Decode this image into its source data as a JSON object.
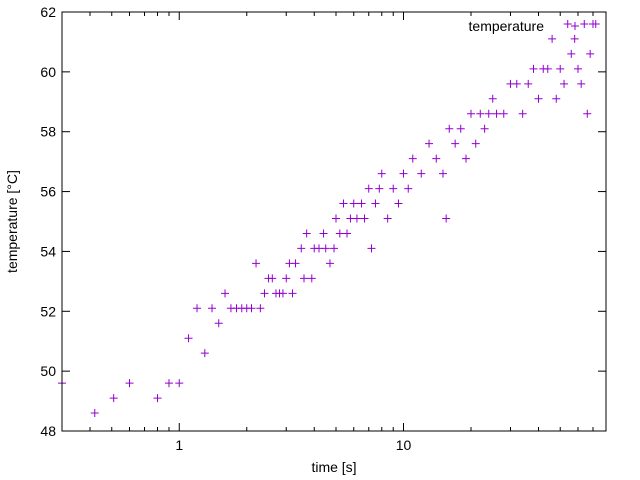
{
  "chart_data": {
    "type": "scatter",
    "xscale": "log",
    "xlim": [
      0.3,
      80
    ],
    "ylim": [
      48,
      62
    ],
    "xlabel": "time [s]",
    "ylabel": "temperature [°C]",
    "xticks": [
      1,
      10
    ],
    "xtick_labels": [
      "1",
      "10"
    ],
    "yticks": [
      48,
      50,
      52,
      54,
      56,
      58,
      60,
      62
    ],
    "ytick_labels": [
      "48",
      "50",
      "52",
      "54",
      "56",
      "58",
      "60",
      "62"
    ],
    "grid": false,
    "legend": {
      "position": "top-right",
      "entries": [
        "temperature"
      ]
    },
    "marker": "+",
    "color": "#9400d3",
    "series": [
      {
        "name": "temperature",
        "points": [
          [
            0.3,
            49.6
          ],
          [
            0.42,
            48.6
          ],
          [
            0.51,
            49.1
          ],
          [
            0.6,
            49.6
          ],
          [
            0.8,
            49.1
          ],
          [
            0.9,
            49.6
          ],
          [
            1.0,
            49.6
          ],
          [
            1.1,
            51.1
          ],
          [
            1.2,
            52.1
          ],
          [
            1.3,
            50.6
          ],
          [
            1.4,
            52.1
          ],
          [
            1.5,
            51.6
          ],
          [
            1.6,
            52.6
          ],
          [
            1.7,
            52.1
          ],
          [
            1.8,
            52.1
          ],
          [
            1.9,
            52.1
          ],
          [
            2.0,
            52.1
          ],
          [
            2.1,
            52.1
          ],
          [
            2.2,
            53.6
          ],
          [
            2.3,
            52.1
          ],
          [
            2.4,
            52.6
          ],
          [
            2.5,
            53.1
          ],
          [
            2.6,
            53.1
          ],
          [
            2.7,
            52.6
          ],
          [
            2.8,
            52.6
          ],
          [
            2.9,
            52.6
          ],
          [
            3.0,
            53.1
          ],
          [
            3.1,
            53.6
          ],
          [
            3.2,
            52.6
          ],
          [
            3.3,
            53.6
          ],
          [
            3.5,
            54.1
          ],
          [
            3.6,
            53.1
          ],
          [
            3.7,
            54.6
          ],
          [
            3.9,
            53.1
          ],
          [
            4.0,
            54.1
          ],
          [
            4.2,
            54.1
          ],
          [
            4.4,
            54.6
          ],
          [
            4.5,
            54.1
          ],
          [
            4.7,
            53.6
          ],
          [
            4.9,
            54.1
          ],
          [
            5.0,
            55.1
          ],
          [
            5.2,
            54.6
          ],
          [
            5.4,
            55.6
          ],
          [
            5.6,
            54.6
          ],
          [
            5.8,
            55.1
          ],
          [
            6.0,
            55.6
          ],
          [
            6.2,
            55.1
          ],
          [
            6.5,
            55.6
          ],
          [
            6.7,
            55.1
          ],
          [
            7.0,
            56.1
          ],
          [
            7.2,
            54.1
          ],
          [
            7.5,
            55.6
          ],
          [
            7.8,
            56.1
          ],
          [
            8.0,
            56.6
          ],
          [
            8.5,
            55.1
          ],
          [
            9.0,
            56.1
          ],
          [
            9.5,
            55.6
          ],
          [
            10.0,
            56.6
          ],
          [
            10.5,
            56.1
          ],
          [
            11.0,
            57.1
          ],
          [
            12.0,
            56.6
          ],
          [
            13.0,
            57.6
          ],
          [
            14.0,
            57.1
          ],
          [
            15.0,
            56.6
          ],
          [
            15.5,
            55.1
          ],
          [
            16.0,
            58.1
          ],
          [
            17.0,
            57.6
          ],
          [
            18.0,
            58.1
          ],
          [
            19.0,
            57.1
          ],
          [
            20.0,
            58.6
          ],
          [
            21.0,
            57.6
          ],
          [
            22.0,
            58.6
          ],
          [
            23.0,
            58.1
          ],
          [
            24.0,
            58.6
          ],
          [
            25.0,
            59.1
          ],
          [
            26.0,
            58.6
          ],
          [
            28.0,
            58.6
          ],
          [
            30.0,
            59.6
          ],
          [
            32.0,
            59.6
          ],
          [
            34.0,
            58.6
          ],
          [
            36.0,
            59.6
          ],
          [
            38.0,
            60.1
          ],
          [
            40.0,
            59.1
          ],
          [
            42.0,
            60.1
          ],
          [
            44.0,
            60.1
          ],
          [
            46.0,
            61.1
          ],
          [
            48.0,
            59.1
          ],
          [
            50.0,
            60.1
          ],
          [
            52.0,
            59.6
          ],
          [
            54.0,
            61.6
          ],
          [
            56.0,
            60.6
          ],
          [
            58.0,
            61.1
          ],
          [
            60.0,
            60.1
          ],
          [
            62.0,
            59.6
          ],
          [
            64.0,
            61.6
          ],
          [
            66.0,
            58.6
          ],
          [
            68.0,
            60.6
          ],
          [
            70.0,
            61.6
          ],
          [
            72.0,
            61.6
          ]
        ]
      }
    ]
  }
}
